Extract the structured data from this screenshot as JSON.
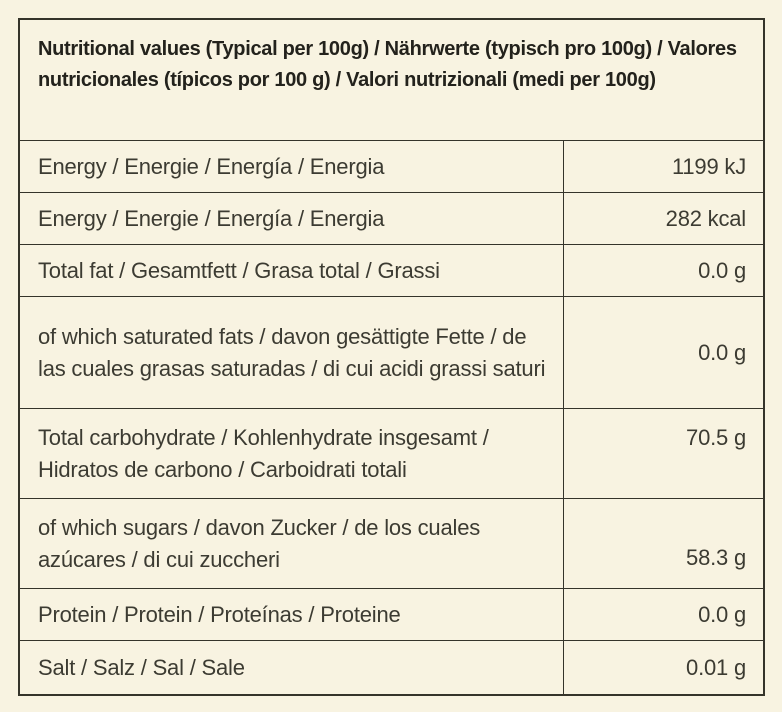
{
  "table": {
    "header": "Nutritional values (Typical per 100g) / Nährwerte (typisch pro 100g) / Valores nutricionales (típicos por 100 g) / Valori nutrizionali (medi per 100g)",
    "rows": [
      {
        "label": "Energy / Energie / Energía / Energia",
        "value": "1199 kJ"
      },
      {
        "label": "Energy / Energie / Energía / Energia",
        "value": "282 kcal"
      },
      {
        "label": "Total fat / Gesamtfett / Grasa total / Grassi",
        "value": "0.0 g"
      },
      {
        "label": "of which saturated fats / davon gesättigte Fette / de las cuales grasas saturadas / di cui acidi grassi saturi",
        "value": "0.0 g"
      },
      {
        "label": "Total carbohydrate / Kohlenhydrate insgesamt / Hidratos de carbono / Carboidrati totali",
        "value": "70.5 g"
      },
      {
        "label": "of which sugars / davon Zucker / de los cuales azúcares / di cui zuccheri",
        "value": "58.3 g"
      },
      {
        "label": "Protein / Protein / Proteínas / Proteine",
        "value": "0.0 g"
      },
      {
        "label": "Salt / Salz / Sal / Sale",
        "value": "0.01 g"
      }
    ],
    "colors": {
      "background": "#f8f3e1",
      "border": "#35342a",
      "header_text": "#23221c",
      "body_text": "#3c3b32"
    }
  }
}
